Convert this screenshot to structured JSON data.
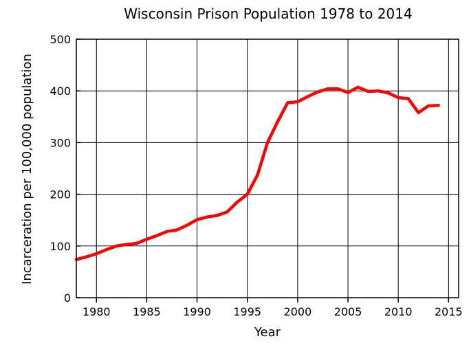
{
  "chart_data": {
    "type": "line",
    "title": "Wisconsin Prison Population 1978 to 2014",
    "xlabel": "Year",
    "ylabel": "Incarceration per 100,000 population",
    "xlim": [
      1978,
      2016
    ],
    "ylim": [
      0,
      500
    ],
    "xticks": [
      1980,
      1985,
      1990,
      1995,
      2000,
      2005,
      2010,
      2015
    ],
    "yticks": [
      0,
      100,
      200,
      300,
      400,
      500
    ],
    "grid": true,
    "legend": "none",
    "series": [
      {
        "color": "#ff0000",
        "x": [
          1978,
          1979,
          1980,
          1981,
          1982,
          1983,
          1984,
          1985,
          1986,
          1987,
          1988,
          1989,
          1990,
          1991,
          1992,
          1993,
          1994,
          1995,
          1996,
          1997,
          1998,
          1999,
          2000,
          2001,
          2002,
          2003,
          2004,
          2005,
          2006,
          2007,
          2008,
          2009,
          2010,
          2011,
          2012,
          2013,
          2014
        ],
        "y": [
          74,
          79,
          85,
          93,
          100,
          103,
          105,
          113,
          120,
          128,
          131,
          140,
          151,
          156,
          159,
          166,
          185,
          200,
          237,
          300,
          340,
          377,
          379,
          389,
          398,
          404,
          404,
          397,
          407,
          399,
          400,
          396,
          387,
          385,
          358,
          371,
          372
        ]
      }
    ]
  }
}
